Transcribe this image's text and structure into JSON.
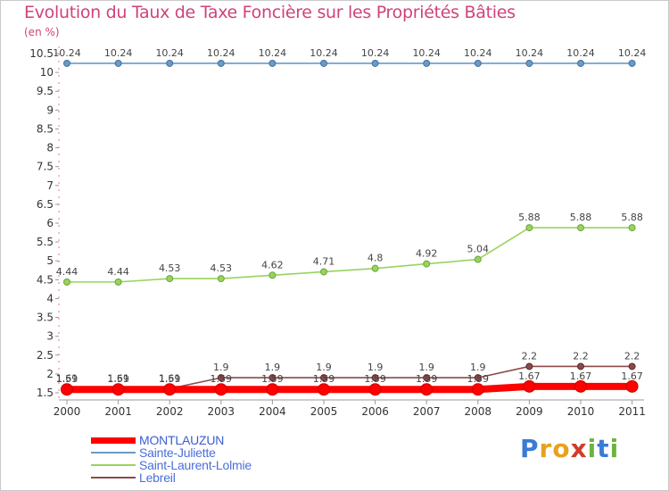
{
  "page": {
    "title": "Evolution du Taux de Taxe Foncière sur les Propriétés Bâties",
    "unit": "(en %)",
    "logo": {
      "letters": [
        "P",
        "r",
        "o",
        "x",
        "i",
        "t",
        "i"
      ],
      "colors": [
        "#3a7bd5",
        "#e8a11d",
        "#e8a11d",
        "#d23c2c",
        "#6cb33f",
        "#3a7bd5",
        "#6cb33f"
      ]
    }
  },
  "chart_data": {
    "type": "line",
    "title": "Evolution du Taux de Taxe Foncière sur les Propriétés Bâties",
    "ylabel": "(en %)",
    "xlabel": "",
    "x": [
      "2000",
      "2001",
      "2002",
      "2003",
      "2004",
      "2005",
      "2006",
      "2007",
      "2008",
      "2009",
      "2010",
      "2011"
    ],
    "ylim": [
      1.5,
      10.5
    ],
    "yticks": [
      "1.5",
      "2",
      "2.5",
      "3",
      "3.5",
      "4",
      "4.5",
      "5",
      "5.5",
      "6",
      "6.5",
      "7",
      "7.5",
      "8",
      "8.5",
      "9",
      "9.5",
      "10",
      "10.5"
    ],
    "legend_position": "bottom-left",
    "series": [
      {
        "name": "MONTLAUZUN",
        "color": "#ff0000",
        "values": [
          1.59,
          1.59,
          1.59,
          1.59,
          1.59,
          1.59,
          1.59,
          1.59,
          1.59,
          1.67,
          1.67,
          1.67
        ],
        "labels": [
          "1.59",
          "1.59",
          "1.59",
          "1.59",
          "1.59",
          "1.59",
          "1.59",
          "1.59",
          "1.59",
          "1.67",
          "1.67",
          "1.67"
        ]
      },
      {
        "name": "Sainte-Juliette",
        "color": "#6b9ac4",
        "values": [
          10.24,
          10.24,
          10.24,
          10.24,
          10.24,
          10.24,
          10.24,
          10.24,
          10.24,
          10.24,
          10.24,
          10.24
        ],
        "labels": [
          "10.24",
          "10.24",
          "10.24",
          "10.24",
          "10.24",
          "10.24",
          "10.24",
          "10.24",
          "10.24",
          "10.24",
          "10.24",
          "10.24"
        ]
      },
      {
        "name": "Saint-Laurent-Lolmie",
        "color": "#99d35e",
        "values": [
          4.44,
          4.44,
          4.53,
          4.53,
          4.62,
          4.71,
          4.8,
          4.92,
          5.04,
          5.88,
          5.88,
          5.88
        ],
        "labels": [
          "4.44",
          "4.44",
          "4.53",
          "4.53",
          "4.62",
          "4.71",
          "4.8",
          "4.92",
          "5.04",
          "5.88",
          "5.88",
          "5.88"
        ]
      },
      {
        "name": "Lebreil",
        "color": "#8a4a4a",
        "values": [
          1.61,
          1.61,
          1.61,
          1.9,
          1.9,
          1.9,
          1.9,
          1.9,
          1.9,
          2.2,
          2.2,
          2.2
        ],
        "labels": [
          "1.61",
          "1.61",
          "1.61",
          "1.9",
          "1.9",
          "1.9",
          "1.9",
          "1.9",
          "1.9",
          "2.2",
          "2.2",
          "2.2"
        ]
      }
    ]
  }
}
